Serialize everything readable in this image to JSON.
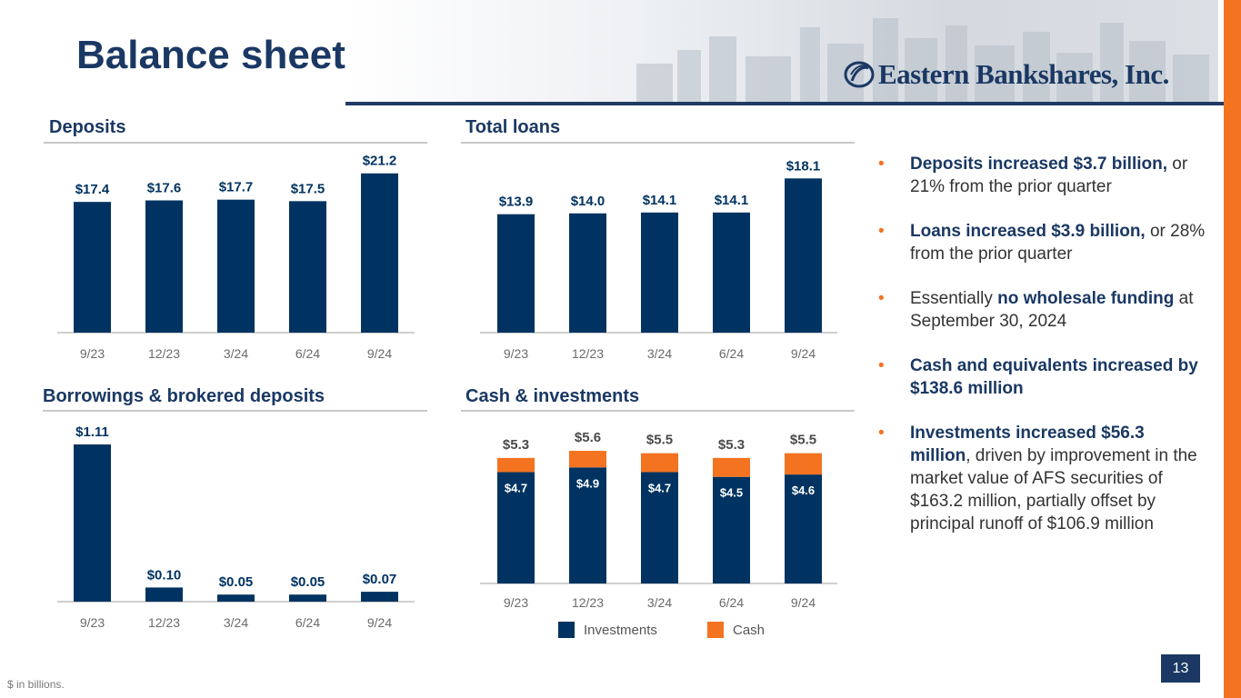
{
  "title": "Balance sheet",
  "logo_text": "Eastern Bankshares, Inc.",
  "colors": {
    "navy": "#003361",
    "orange": "#f37321",
    "accent_text": "#1a3863"
  },
  "panels": {
    "deposits": {
      "title": "Deposits"
    },
    "loans": {
      "title": "Total loans"
    },
    "borrowings": {
      "title": "Borrowings & brokered deposits"
    },
    "cash": {
      "title": "Cash & investments"
    }
  },
  "chart_data": [
    {
      "id": "deposits",
      "type": "bar",
      "title": "Deposits",
      "categories": [
        "9/23",
        "12/23",
        "3/24",
        "6/24",
        "9/24"
      ],
      "values": [
        17.4,
        17.6,
        17.7,
        17.5,
        21.2
      ],
      "labels": [
        "$17.4",
        "$17.6",
        "$17.7",
        "$17.5",
        "$21.2"
      ],
      "ylim": [
        0,
        22.5
      ]
    },
    {
      "id": "loans",
      "type": "bar",
      "title": "Total loans",
      "categories": [
        "9/23",
        "12/23",
        "3/24",
        "6/24",
        "9/24"
      ],
      "values": [
        13.9,
        14.0,
        14.1,
        14.1,
        18.1
      ],
      "labels": [
        "$13.9",
        "$14.0",
        "$14.1",
        "$14.1",
        "$18.1"
      ],
      "ylim": [
        0,
        19.2
      ]
    },
    {
      "id": "borrowings",
      "type": "bar",
      "title": "Borrowings & brokered deposits",
      "categories": [
        "9/23",
        "12/23",
        "3/24",
        "6/24",
        "9/24"
      ],
      "values": [
        1.11,
        0.1,
        0.05,
        0.05,
        0.07
      ],
      "labels": [
        "$1.11",
        "$0.10",
        "$0.05",
        "$0.05",
        "$0.07"
      ],
      "ylim": [
        0,
        1.2
      ]
    },
    {
      "id": "cash",
      "type": "bar",
      "stacked": true,
      "title": "Cash & investments",
      "categories": [
        "9/23",
        "12/23",
        "3/24",
        "6/24",
        "9/24"
      ],
      "series": [
        {
          "name": "Investments",
          "color": "#003361",
          "values": [
            4.7,
            4.9,
            4.7,
            4.5,
            4.6
          ],
          "labels": [
            "$4.7",
            "$4.9",
            "$4.7",
            "$4.5",
            "$4.6"
          ]
        },
        {
          "name": "Cash",
          "color": "#f37321",
          "values": [
            0.6,
            0.7,
            0.8,
            0.8,
            0.9
          ]
        }
      ],
      "totals": [
        5.3,
        5.6,
        5.5,
        5.3,
        5.5
      ],
      "total_labels": [
        "$5.3",
        "$5.6",
        "$5.5",
        "$5.3",
        "$5.5"
      ],
      "ylim": [
        0,
        6.1
      ]
    }
  ],
  "legend": [
    {
      "name": "Investments",
      "color": "#003361"
    },
    {
      "name": "Cash",
      "color": "#f37321"
    }
  ],
  "bullets": [
    {
      "bold": "Deposits increased $3.7 billion,",
      "text": " or 21% from the prior quarter"
    },
    {
      "bold": "Loans increased $3.9 billion,",
      "text": " or 28% from the prior quarter"
    },
    {
      "pre": "Essentially ",
      "bold": "no wholesale funding",
      "text": " at September 30, 2024"
    },
    {
      "bold": "Cash and equivalents increased by $138.6 million",
      "text": ""
    },
    {
      "bold": "Investments increased $56.3 million",
      "text": ", driven by improvement in the market value of AFS securities of $163.2 million,  partially offset by principal runoff of $106.9 million"
    }
  ],
  "footnote": "$ in billions.",
  "page_number": "13"
}
